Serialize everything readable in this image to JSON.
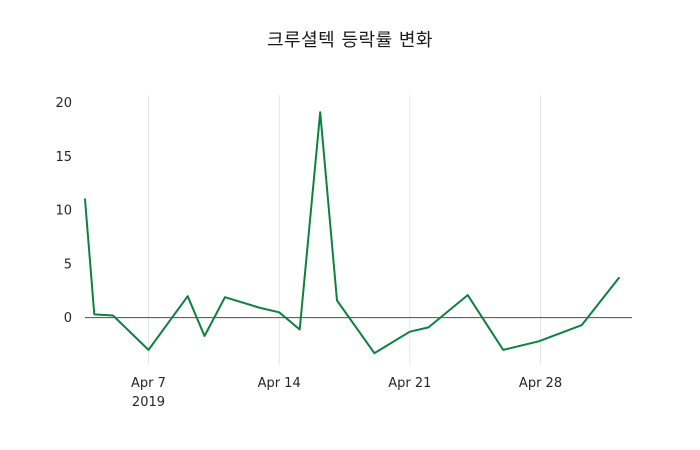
{
  "chart_data": {
    "type": "line",
    "title": "크루셜텍 등락률 변화",
    "xlabel": "",
    "ylabel": "",
    "background": "#ffffff",
    "line_color": "#0f8040",
    "zero_line_color": "#4d4d4d",
    "grid_color": "#e6e6e6",
    "grid": "vertical-weekly",
    "legend": "none",
    "xlim": [
      3.6,
      32.9
    ],
    "ylim": [
      -4.4,
      20.7
    ],
    "y_ticks": [
      0,
      5,
      10,
      15,
      20
    ],
    "x_ticks": [
      {
        "pos": 7,
        "label": "Apr 7",
        "sublabel": "2019"
      },
      {
        "pos": 14,
        "label": "Apr 14",
        "sublabel": ""
      },
      {
        "pos": 21,
        "label": "Apr 21",
        "sublabel": ""
      },
      {
        "pos": 28,
        "label": "Apr 28",
        "sublabel": ""
      }
    ],
    "series": [
      {
        "name": "등락률",
        "x_day_of_april_2019": [
          3.6,
          4.1,
          5.1,
          7.0,
          9.1,
          10.0,
          11.1,
          13.0,
          14.0,
          15.1,
          16.2,
          17.1,
          19.1,
          21.0,
          22.0,
          24.1,
          26.0,
          27.9,
          30.2,
          32.2
        ],
        "values": [
          11.0,
          0.3,
          0.2,
          -3.0,
          2.0,
          -1.7,
          1.9,
          0.9,
          0.5,
          -1.1,
          19.1,
          1.6,
          -3.3,
          -1.3,
          -0.9,
          2.1,
          -3.0,
          -2.2,
          -0.7,
          3.7
        ]
      }
    ]
  }
}
